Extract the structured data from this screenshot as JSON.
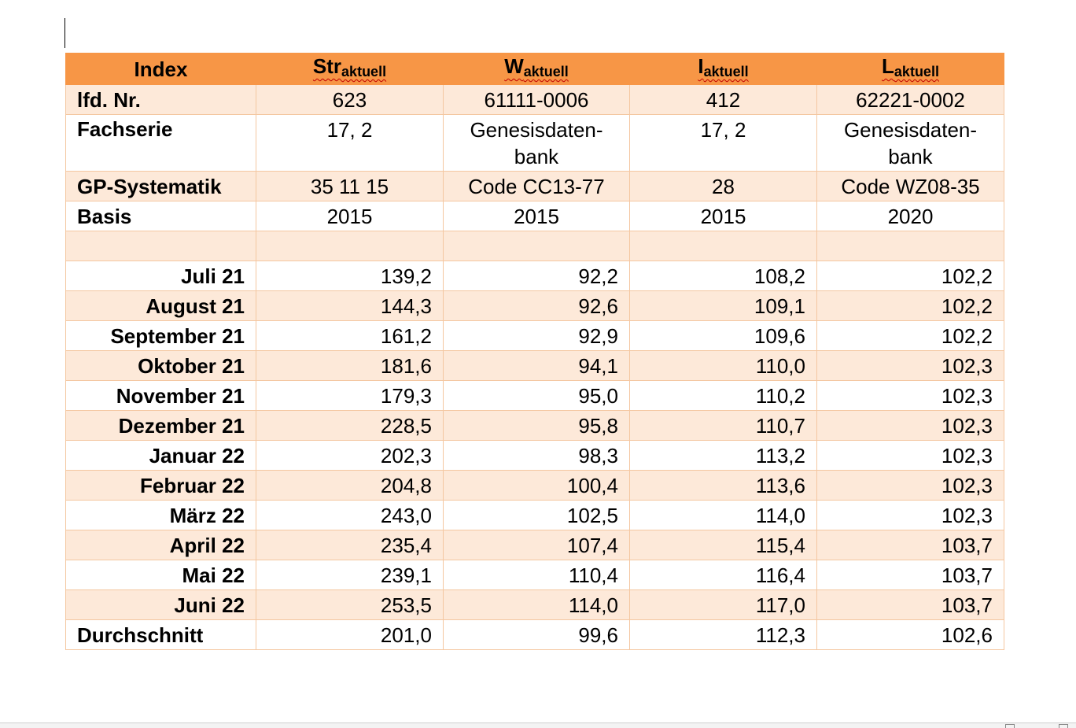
{
  "header": {
    "index_label": "Index",
    "columns": [
      {
        "main": "Str",
        "sub": "aktuell"
      },
      {
        "main": "W",
        "sub": "aktuell"
      },
      {
        "main": "I",
        "sub": "aktuell"
      },
      {
        "main": "L",
        "sub": "aktuell"
      }
    ]
  },
  "meta_rows": [
    {
      "label": "lfd. Nr.",
      "values": [
        "623",
        "61111-0006",
        "412",
        "62221-0002"
      ]
    },
    {
      "label": "Fachserie",
      "values": [
        "17, 2",
        "Genesisdaten-\nbank",
        "17, 2",
        "Genesisdaten-\nbank"
      ]
    },
    {
      "label": "GP-Systematik",
      "values": [
        "35 11 15",
        "Code CC13-77",
        "28",
        "Code WZ08-35"
      ]
    },
    {
      "label": "Basis",
      "values": [
        "2015",
        "2015",
        "2015",
        "2020"
      ]
    }
  ],
  "data_rows": [
    {
      "label": "Juli 21",
      "values": [
        "139,2",
        "92,2",
        "108,2",
        "102,2"
      ]
    },
    {
      "label": "August 21",
      "values": [
        "144,3",
        "92,6",
        "109,1",
        "102,2"
      ]
    },
    {
      "label": "September 21",
      "values": [
        "161,2",
        "92,9",
        "109,6",
        "102,2"
      ]
    },
    {
      "label": "Oktober 21",
      "values": [
        "181,6",
        "94,1",
        "110,0",
        "102,3"
      ]
    },
    {
      "label": "November 21",
      "values": [
        "179,3",
        "95,0",
        "110,2",
        "102,3"
      ]
    },
    {
      "label": "Dezember 21",
      "values": [
        "228,5",
        "95,8",
        "110,7",
        "102,3"
      ]
    },
    {
      "label": "Januar 22",
      "values": [
        "202,3",
        "98,3",
        "113,2",
        "102,3"
      ]
    },
    {
      "label": "Februar 22",
      "values": [
        "204,8",
        "100,4",
        "113,6",
        "102,3"
      ]
    },
    {
      "label": "März 22",
      "values": [
        "243,0",
        "102,5",
        "114,0",
        "102,3"
      ]
    },
    {
      "label": "April 22",
      "values": [
        "235,4",
        "107,4",
        "115,4",
        "103,7"
      ]
    },
    {
      "label": "Mai 22",
      "values": [
        "239,1",
        "110,4",
        "116,4",
        "103,7"
      ]
    },
    {
      "label": "Juni 22",
      "values": [
        "253,5",
        "114,0",
        "117,0",
        "103,7"
      ]
    }
  ],
  "average_row": {
    "label": "Durchschnitt",
    "values": [
      "201,0",
      "99,6",
      "112,3",
      "102,6"
    ]
  },
  "colors": {
    "header_bg": "#f79646",
    "band_bg": "#fde9d9",
    "grid": "#f4c7a1"
  }
}
